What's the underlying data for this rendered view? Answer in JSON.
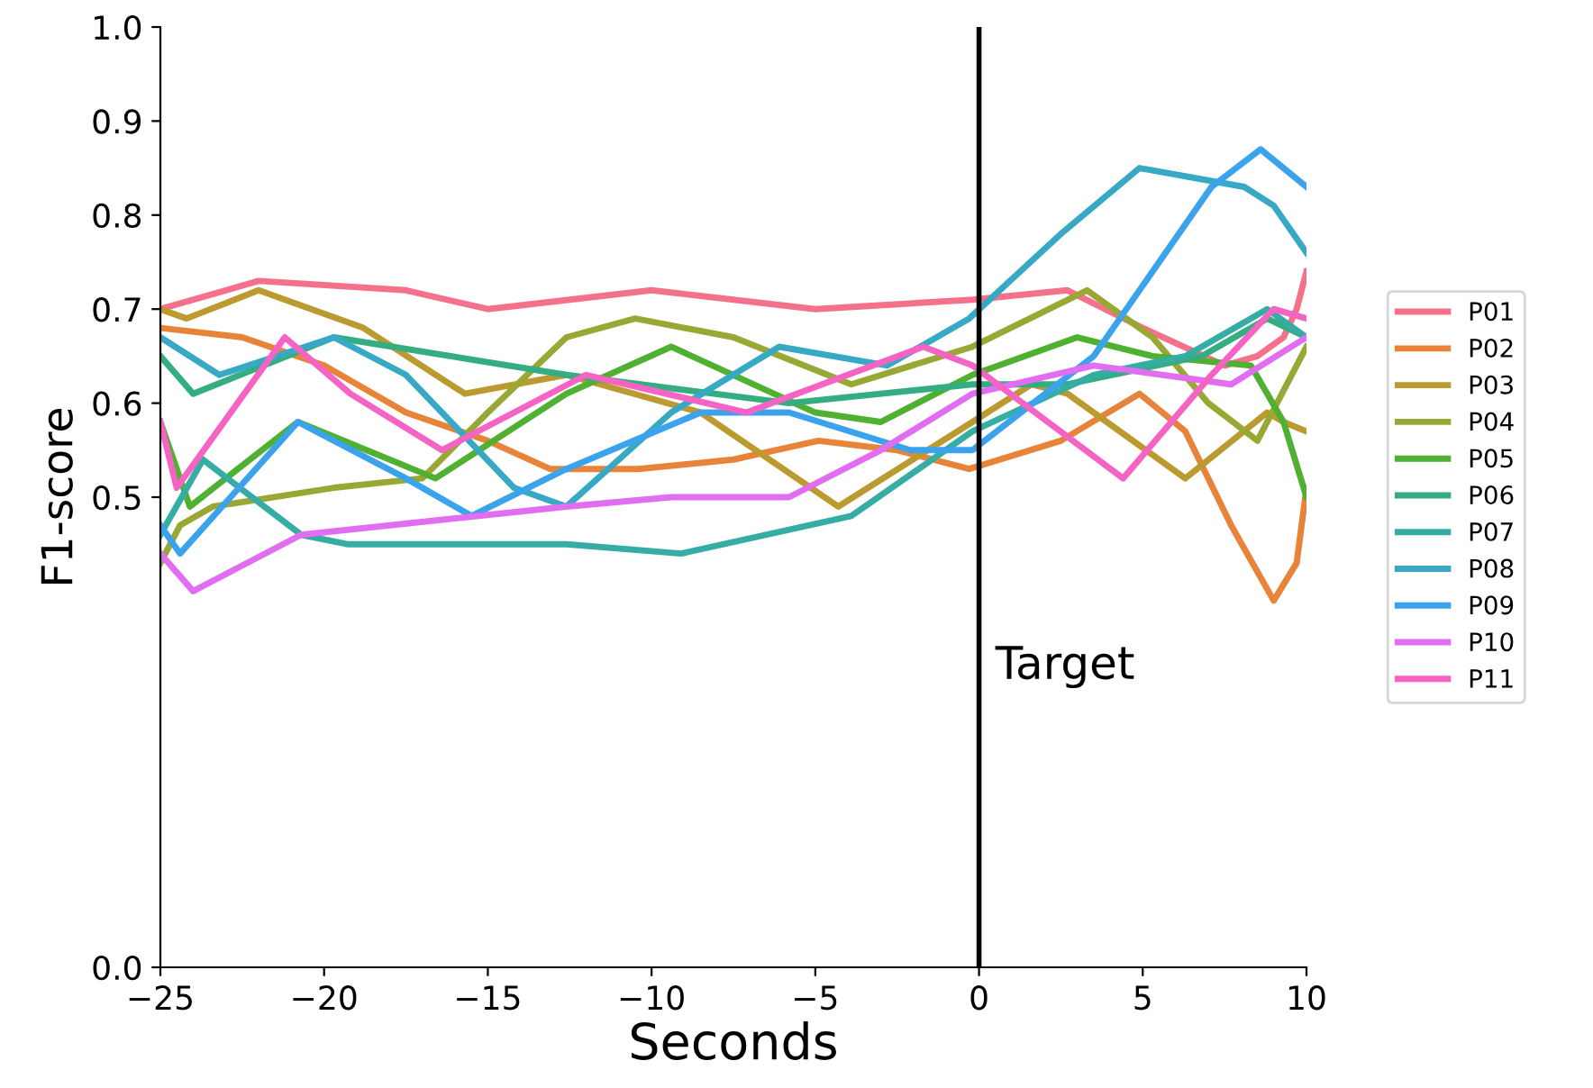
{
  "chart_data": {
    "type": "line",
    "xlabel": "Seconds",
    "ylabel": "F1-score",
    "xlim": [
      -25,
      10
    ],
    "ylim": [
      0,
      1
    ],
    "xticks": [
      {
        "value": -25,
        "label": "−25"
      },
      {
        "value": -20,
        "label": "−20"
      },
      {
        "value": -15,
        "label": "−15"
      },
      {
        "value": -10,
        "label": "−10"
      },
      {
        "value": -5,
        "label": "−5"
      },
      {
        "value": 0,
        "label": "0"
      },
      {
        "value": 5,
        "label": "5"
      },
      {
        "value": 10,
        "label": "10"
      }
    ],
    "yticks": [
      {
        "value": 0,
        "label": "0.0"
      },
      {
        "value": 0.5,
        "label": "0.5"
      },
      {
        "value": 0.6,
        "label": "0.6"
      },
      {
        "value": 0.7,
        "label": "0.7"
      },
      {
        "value": 0.8,
        "label": "0.8"
      },
      {
        "value": 0.9,
        "label": "0.9"
      },
      {
        "value": 1,
        "label": "1.0"
      }
    ],
    "grid": false,
    "legend": "right",
    "ref_lines": [
      {
        "axis": "x",
        "value": 0,
        "label": "Target",
        "color": "#000000",
        "line_style": "solid"
      }
    ],
    "series": [
      {
        "name": "P01",
        "color": "#f5708a",
        "x": [
          -25,
          -22,
          -17.5,
          -15,
          -10,
          -5,
          -0.2,
          2.7,
          5,
          7.5,
          8.5,
          9.3,
          9.7,
          10
        ],
        "values": [
          0.7,
          0.73,
          0.72,
          0.7,
          0.72,
          0.7,
          0.71,
          0.72,
          0.68,
          0.64,
          0.65,
          0.67,
          0.7,
          0.74
        ]
      },
      {
        "name": "P02",
        "color": "#e8833a",
        "x": [
          -25,
          -22.5,
          -20,
          -17.5,
          -15,
          -13.1,
          -10.4,
          -7.5,
          -4.9,
          -2.5,
          -0.3,
          2.5,
          4.9,
          6.3,
          7.7,
          9.0,
          9.7,
          10
        ],
        "values": [
          0.68,
          0.67,
          0.64,
          0.59,
          0.56,
          0.53,
          0.53,
          0.54,
          0.56,
          0.55,
          0.53,
          0.56,
          0.61,
          0.57,
          0.47,
          0.39,
          0.43,
          0.51
        ]
      },
      {
        "name": "P03",
        "color": "#bb9a30",
        "x": [
          -25,
          -24.2,
          -22,
          -18.8,
          -15.7,
          -12.6,
          -8.5,
          -4.3,
          -0.2,
          1.6,
          2.7,
          6.3,
          8.8,
          9.3,
          10
        ],
        "values": [
          0.7,
          0.69,
          0.72,
          0.68,
          0.61,
          0.63,
          0.59,
          0.49,
          0.58,
          0.62,
          0.61,
          0.52,
          0.59,
          0.58,
          0.57
        ]
      },
      {
        "name": "P04",
        "color": "#99a834",
        "x": [
          -25,
          -24.4,
          -23.4,
          -19.7,
          -17,
          -15,
          -12.6,
          -10.5,
          -7.5,
          -3.9,
          -0.2,
          3.3,
          5.3,
          7,
          8.5,
          10
        ],
        "values": [
          0.43,
          0.47,
          0.49,
          0.51,
          0.52,
          0.59,
          0.67,
          0.69,
          0.67,
          0.62,
          0.66,
          0.72,
          0.67,
          0.6,
          0.56,
          0.66
        ]
      },
      {
        "name": "P05",
        "color": "#4fb031",
        "x": [
          -25,
          -24.7,
          -24.1,
          -20.8,
          -16.6,
          -12.6,
          -9.4,
          -5,
          -3,
          -0.2,
          3,
          5.3,
          8.3,
          9.3,
          10
        ],
        "values": [
          0.58,
          0.55,
          0.49,
          0.58,
          0.52,
          0.61,
          0.66,
          0.59,
          0.58,
          0.63,
          0.67,
          0.65,
          0.64,
          0.58,
          0.5
        ]
      },
      {
        "name": "P06",
        "color": "#34ae80",
        "x": [
          -25,
          -24,
          -19.7,
          -12.6,
          -5.8,
          -0.2,
          2.7,
          6.8,
          8.8,
          10
        ],
        "values": [
          0.65,
          0.61,
          0.67,
          0.63,
          0.6,
          0.62,
          0.62,
          0.65,
          0.69,
          0.67
        ]
      },
      {
        "name": "P07",
        "color": "#36ada4",
        "x": [
          -25,
          -23.7,
          -20.7,
          -19.3,
          -12.6,
          -9.1,
          -3.9,
          -0.2,
          3.5,
          6.3,
          8.8,
          10
        ],
        "values": [
          0.46,
          0.54,
          0.46,
          0.45,
          0.45,
          0.44,
          0.48,
          0.57,
          0.63,
          0.65,
          0.7,
          0.67
        ]
      },
      {
        "name": "P08",
        "color": "#38a9c5",
        "x": [
          -25,
          -23.2,
          -19.7,
          -17.5,
          -14.2,
          -12.6,
          -9.4,
          -6.1,
          -2.8,
          -0.3,
          2.5,
          4.9,
          8.1,
          9.0,
          10
        ],
        "values": [
          0.67,
          0.63,
          0.67,
          0.63,
          0.51,
          0.49,
          0.59,
          0.66,
          0.64,
          0.69,
          0.78,
          0.85,
          0.83,
          0.81,
          0.76
        ]
      },
      {
        "name": "P09",
        "color": "#3ba3ec",
        "x": [
          -25,
          -24.4,
          -20.8,
          -17.5,
          -15.5,
          -12.6,
          -8.5,
          -5.8,
          -2.1,
          -0.2,
          3.5,
          7.1,
          8.6,
          10
        ],
        "values": [
          0.47,
          0.44,
          0.58,
          0.52,
          0.48,
          0.53,
          0.59,
          0.59,
          0.55,
          0.55,
          0.65,
          0.83,
          0.87,
          0.83
        ]
      },
      {
        "name": "P10",
        "color": "#e16ef0",
        "x": [
          -25,
          -24,
          -20.7,
          -12.6,
          -9.4,
          -5.8,
          -3,
          -0.2,
          3.5,
          7.7,
          10
        ],
        "values": [
          0.44,
          0.4,
          0.46,
          0.49,
          0.5,
          0.5,
          0.55,
          0.61,
          0.64,
          0.62,
          0.67
        ]
      },
      {
        "name": "P11",
        "color": "#f564c4",
        "x": [
          -25,
          -24.5,
          -21.2,
          -19.2,
          -16.4,
          -12,
          -7.1,
          -1.7,
          -0.2,
          4.4,
          7.1,
          9.0,
          10
        ],
        "values": [
          0.58,
          0.51,
          0.67,
          0.61,
          0.55,
          0.63,
          0.59,
          0.66,
          0.64,
          0.52,
          0.63,
          0.7,
          0.69
        ]
      }
    ]
  }
}
